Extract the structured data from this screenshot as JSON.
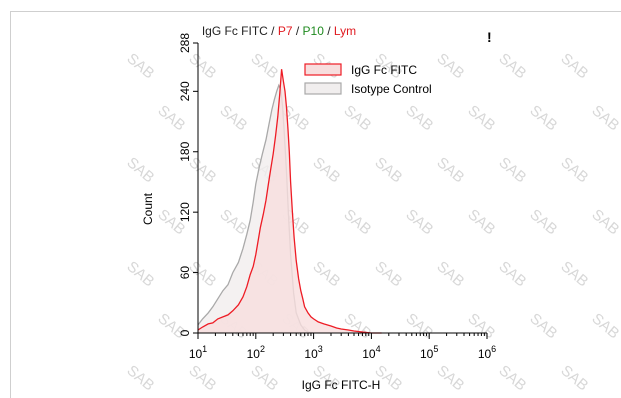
{
  "chart_data": {
    "type": "area",
    "title_parts": [
      {
        "text": "IgG Fc FITC / ",
        "color": "#222222"
      },
      {
        "text": "P7",
        "color": "#e0191f"
      },
      {
        "text": " / ",
        "color": "#222222"
      },
      {
        "text": "P10",
        "color": "#1f8a1f"
      },
      {
        "text": " / ",
        "color": "#222222"
      },
      {
        "text": "Lym",
        "color": "#e0191f"
      }
    ],
    "xlabel": "IgG Fc FITC-H",
    "ylabel": "Count",
    "x_scale": "log",
    "xlim": [
      10,
      1000000
    ],
    "ylim": [
      0,
      288
    ],
    "x_ticks": [
      {
        "value": 10,
        "base": "10",
        "exp": "1"
      },
      {
        "value": 100,
        "base": "10",
        "exp": "2"
      },
      {
        "value": 1000,
        "base": "10",
        "exp": "3"
      },
      {
        "value": 10000,
        "base": "10",
        "exp": "4"
      },
      {
        "value": 100000,
        "base": "10",
        "exp": "5"
      },
      {
        "value": 1000000,
        "base": "10",
        "exp": "6"
      }
    ],
    "y_ticks": [
      "0",
      "60",
      "120",
      "180",
      "240",
      "288"
    ],
    "legend_position": "top-right",
    "marker": "!",
    "watermark": "SAB",
    "series": [
      {
        "name": "IgG Fc FITC",
        "stroke": "#ee1c25",
        "fill": "#f7dede",
        "x": [
          10,
          12,
          15,
          18,
          22,
          27,
          33,
          40,
          50,
          60,
          70,
          80,
          90,
          100,
          110,
          120,
          135,
          150,
          165,
          180,
          200,
          220,
          240,
          260,
          280,
          300,
          320,
          340,
          360,
          380,
          400,
          430,
          460,
          500,
          550,
          600,
          650,
          700,
          800,
          900,
          1000,
          1200,
          1500,
          2000,
          2500,
          3000,
          4000,
          5000,
          7000,
          10000,
          15000
        ],
        "values": [
          3,
          6,
          9,
          10,
          14,
          16,
          18,
          22,
          28,
          36,
          46,
          58,
          66,
          78,
          92,
          105,
          118,
          132,
          148,
          162,
          178,
          196,
          215,
          238,
          262,
          250,
          240,
          224,
          202,
          180,
          150,
          120,
          95,
          72,
          54,
          42,
          34,
          26,
          20,
          16,
          14,
          11,
          9,
          7,
          5,
          4,
          3,
          2,
          1,
          0,
          0
        ]
      },
      {
        "name": "Isotype Control",
        "stroke": "#a9a9a9",
        "fill": "#f1eeee",
        "x": [
          10,
          12,
          15,
          18,
          22,
          27,
          33,
          40,
          50,
          60,
          70,
          80,
          90,
          100,
          115,
          130,
          150,
          170,
          190,
          210,
          230,
          250,
          270,
          290,
          310,
          340,
          370,
          400,
          450,
          500,
          600,
          700,
          800,
          1000
        ],
        "values": [
          8,
          14,
          20,
          26,
          34,
          42,
          48,
          60,
          70,
          84,
          98,
          112,
          130,
          148,
          165,
          178,
          192,
          208,
          222,
          232,
          240,
          246,
          242,
          226,
          200,
          160,
          115,
          78,
          40,
          20,
          8,
          3,
          1,
          0
        ]
      }
    ]
  }
}
